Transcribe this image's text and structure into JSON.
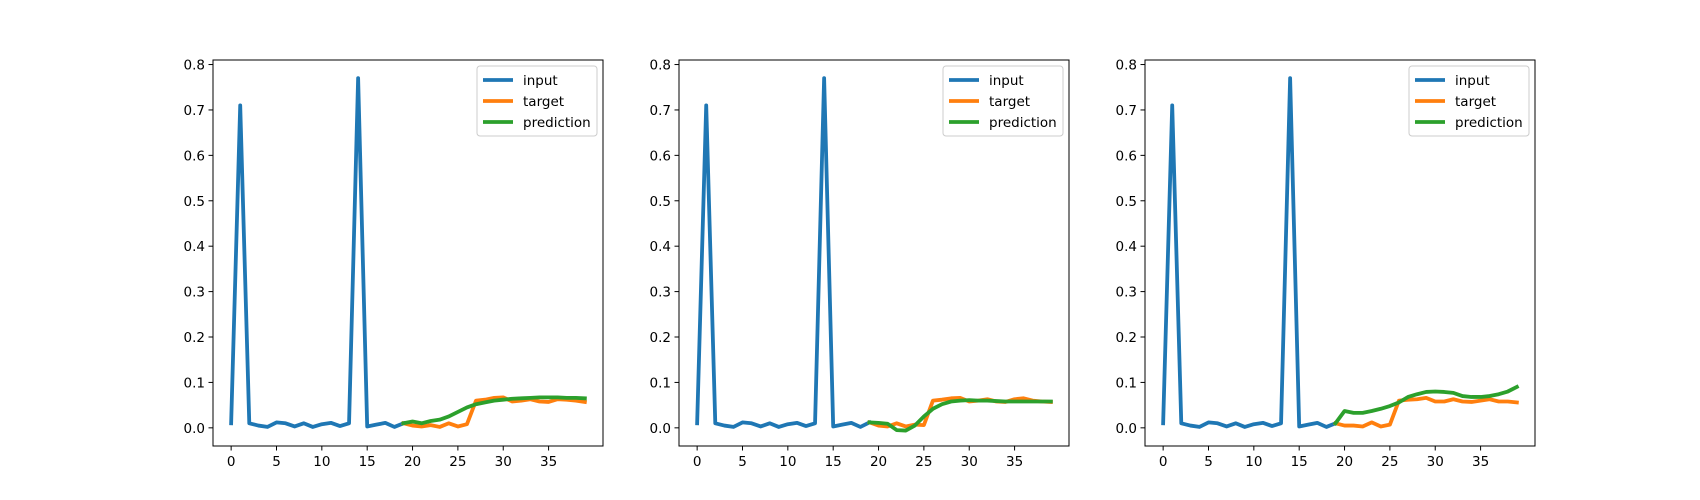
{
  "colors": {
    "input": "#1f77b4",
    "target": "#ff7f0e",
    "prediction": "#2ca02c"
  },
  "chart_data": [
    {
      "type": "line",
      "title": "",
      "xlabel": "",
      "ylabel": "",
      "xlim": [
        -2,
        41
      ],
      "ylim": [
        -0.04,
        0.81
      ],
      "xticks": [
        0,
        5,
        10,
        15,
        20,
        25,
        30,
        35
      ],
      "yticks": [
        0.0,
        0.1,
        0.2,
        0.3,
        0.4,
        0.5,
        0.6,
        0.7,
        0.8
      ],
      "grid": false,
      "legend": "top-right",
      "series": [
        {
          "name": "input",
          "x": [
            0,
            1,
            2,
            3,
            4,
            5,
            6,
            7,
            8,
            9,
            10,
            11,
            12,
            13,
            14,
            15,
            16,
            17,
            18,
            19
          ],
          "values": [
            0.01,
            0.71,
            0.01,
            0.005,
            0.002,
            0.012,
            0.01,
            0.003,
            0.01,
            0.002,
            0.008,
            0.011,
            0.004,
            0.01,
            0.77,
            0.003,
            0.007,
            0.011,
            0.002,
            0.01
          ]
        },
        {
          "name": "target",
          "x": [
            19,
            20,
            21,
            22,
            23,
            24,
            25,
            26,
            27,
            28,
            29,
            30,
            31,
            32,
            33,
            34,
            35,
            36,
            37,
            38,
            39
          ],
          "values": [
            0.01,
            0.005,
            0.003,
            0.006,
            0.002,
            0.01,
            0.003,
            0.008,
            0.06,
            0.062,
            0.066,
            0.067,
            0.058,
            0.06,
            0.063,
            0.058,
            0.057,
            0.063,
            0.062,
            0.06,
            0.057
          ]
        },
        {
          "name": "prediction",
          "x": [
            19,
            20,
            21,
            22,
            23,
            24,
            25,
            26,
            27,
            28,
            29,
            30,
            31,
            32,
            33,
            34,
            35,
            36,
            37,
            38,
            39
          ],
          "values": [
            0.01,
            0.014,
            0.01,
            0.015,
            0.018,
            0.025,
            0.035,
            0.045,
            0.052,
            0.056,
            0.06,
            0.062,
            0.064,
            0.065,
            0.066,
            0.067,
            0.067,
            0.067,
            0.066,
            0.066,
            0.065
          ]
        }
      ]
    },
    {
      "type": "line",
      "title": "",
      "xlabel": "",
      "ylabel": "",
      "xlim": [
        -2,
        41
      ],
      "ylim": [
        -0.04,
        0.81
      ],
      "xticks": [
        0,
        5,
        10,
        15,
        20,
        25,
        30,
        35
      ],
      "yticks": [
        0.0,
        0.1,
        0.2,
        0.3,
        0.4,
        0.5,
        0.6,
        0.7,
        0.8
      ],
      "grid": false,
      "legend": "top-right",
      "series": [
        {
          "name": "input",
          "x": [
            0,
            1,
            2,
            3,
            4,
            5,
            6,
            7,
            8,
            9,
            10,
            11,
            12,
            13,
            14,
            15,
            16,
            17,
            18,
            19
          ],
          "values": [
            0.01,
            0.71,
            0.01,
            0.005,
            0.002,
            0.012,
            0.01,
            0.003,
            0.01,
            0.002,
            0.008,
            0.011,
            0.004,
            0.01,
            0.77,
            0.003,
            0.007,
            0.011,
            0.002,
            0.012
          ]
        },
        {
          "name": "target",
          "x": [
            19,
            20,
            21,
            22,
            23,
            24,
            25,
            26,
            27,
            28,
            29,
            30,
            31,
            32,
            33,
            34,
            35,
            36,
            37,
            38,
            39
          ],
          "values": [
            0.012,
            0.005,
            0.003,
            0.01,
            0.003,
            0.007,
            0.006,
            0.06,
            0.062,
            0.065,
            0.066,
            0.058,
            0.06,
            0.063,
            0.058,
            0.057,
            0.063,
            0.065,
            0.06,
            0.058,
            0.057
          ]
        },
        {
          "name": "prediction",
          "x": [
            19,
            20,
            21,
            22,
            23,
            24,
            25,
            26,
            27,
            28,
            29,
            30,
            31,
            32,
            33,
            34,
            35,
            36,
            37,
            38,
            39
          ],
          "values": [
            0.012,
            0.011,
            0.009,
            -0.005,
            -0.006,
            0.005,
            0.025,
            0.042,
            0.052,
            0.058,
            0.06,
            0.061,
            0.06,
            0.06,
            0.059,
            0.058,
            0.058,
            0.058,
            0.058,
            0.058,
            0.058
          ]
        }
      ]
    },
    {
      "type": "line",
      "title": "",
      "xlabel": "",
      "ylabel": "",
      "xlim": [
        -2,
        41
      ],
      "ylim": [
        -0.04,
        0.81
      ],
      "xticks": [
        0,
        5,
        10,
        15,
        20,
        25,
        30,
        35
      ],
      "yticks": [
        0.0,
        0.1,
        0.2,
        0.3,
        0.4,
        0.5,
        0.6,
        0.7,
        0.8
      ],
      "grid": false,
      "legend": "top-right",
      "series": [
        {
          "name": "input",
          "x": [
            0,
            1,
            2,
            3,
            4,
            5,
            6,
            7,
            8,
            9,
            10,
            11,
            12,
            13,
            14,
            15,
            16,
            17,
            18,
            19
          ],
          "values": [
            0.01,
            0.71,
            0.01,
            0.005,
            0.002,
            0.012,
            0.01,
            0.003,
            0.01,
            0.002,
            0.008,
            0.011,
            0.004,
            0.01,
            0.77,
            0.003,
            0.007,
            0.011,
            0.002,
            0.01
          ]
        },
        {
          "name": "target",
          "x": [
            19,
            20,
            21,
            22,
            23,
            24,
            25,
            26,
            27,
            28,
            29,
            30,
            31,
            32,
            33,
            34,
            35,
            36,
            37,
            38,
            39
          ],
          "values": [
            0.01,
            0.005,
            0.005,
            0.003,
            0.012,
            0.003,
            0.007,
            0.06,
            0.062,
            0.063,
            0.066,
            0.058,
            0.058,
            0.063,
            0.058,
            0.057,
            0.06,
            0.063,
            0.058,
            0.058,
            0.056
          ]
        },
        {
          "name": "prediction",
          "x": [
            19,
            20,
            21,
            22,
            23,
            24,
            25,
            26,
            27,
            28,
            29,
            30,
            31,
            32,
            33,
            34,
            35,
            36,
            37,
            38,
            39
          ],
          "values": [
            0.01,
            0.037,
            0.033,
            0.033,
            0.037,
            0.042,
            0.048,
            0.056,
            0.068,
            0.074,
            0.079,
            0.08,
            0.079,
            0.077,
            0.07,
            0.068,
            0.068,
            0.07,
            0.074,
            0.08,
            0.09
          ]
        }
      ]
    }
  ]
}
